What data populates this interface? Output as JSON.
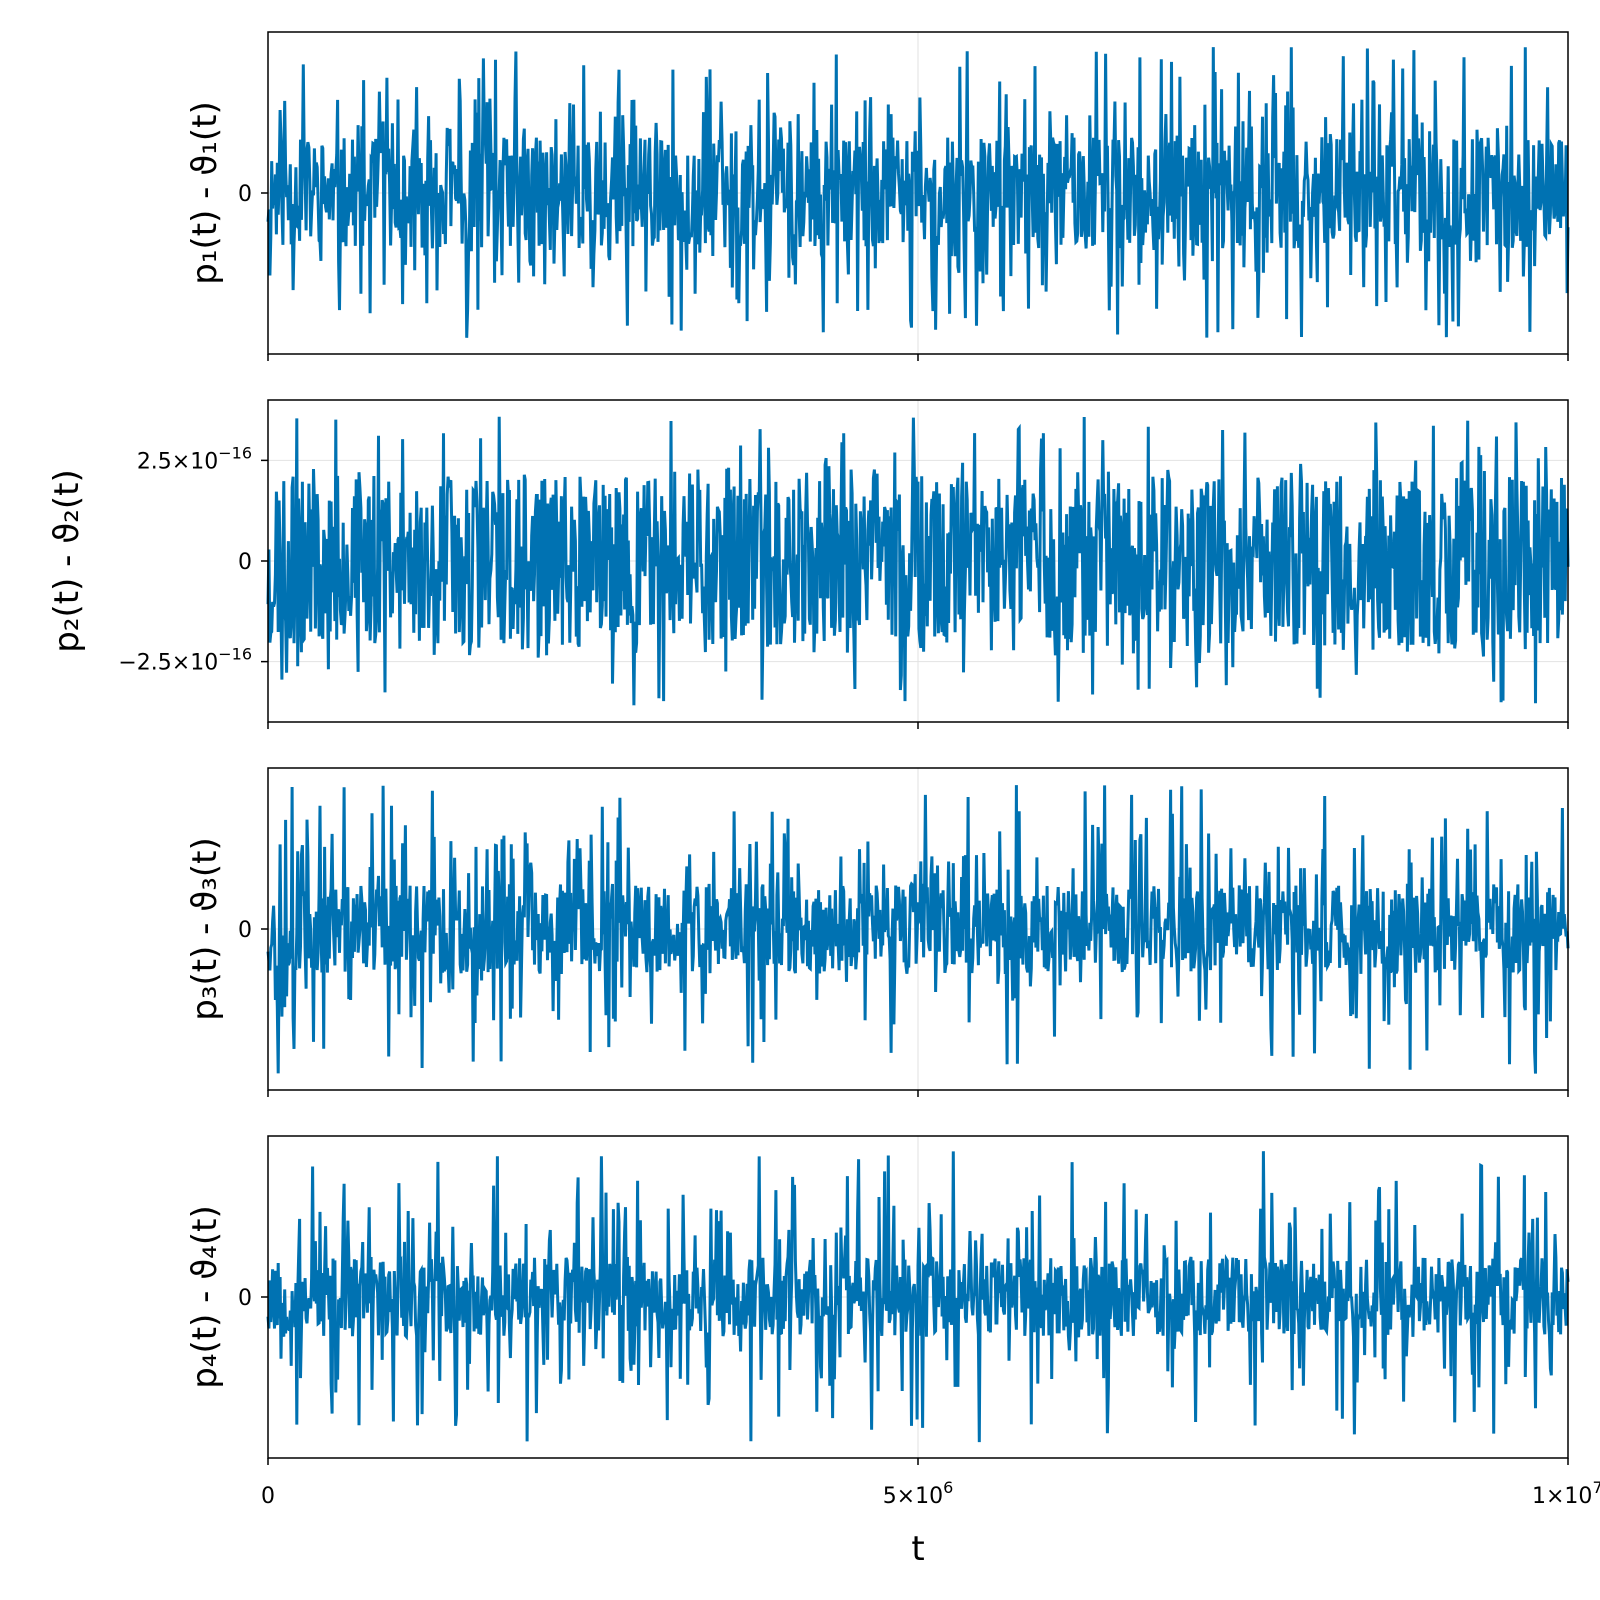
{
  "chart_data": [
    {
      "type": "line",
      "ylabel": "p₁(t) - ϑ₁(t)",
      "xlabel": "",
      "xlim": [
        0,
        10000000
      ],
      "ylim": [
        -1.6,
        1.6
      ],
      "yticks": [
        {
          "value": 0,
          "label": "0"
        }
      ],
      "xticks": [
        {
          "value": 5000000,
          "label": ""
        }
      ],
      "series": [
        {
          "color": "#0072b2",
          "amplitude": 0.55,
          "peak": 1.45,
          "seed": 11
        }
      ]
    },
    {
      "type": "line",
      "ylabel": "p₂(t) - ϑ₂(t)",
      "xlabel": "",
      "xlim": [
        0,
        10000000
      ],
      "ylim": [
        -4e-16,
        4e-16
      ],
      "yticks": [
        {
          "value": 2.5e-16,
          "label": "2.5×10",
          "exp": "−16"
        },
        {
          "value": 0,
          "label": "0"
        },
        {
          "value": -2.5e-16,
          "label": "−2.5×10",
          "exp": "−16"
        }
      ],
      "xticks": [
        {
          "value": 5000000,
          "label": ""
        }
      ],
      "series": [
        {
          "color": "#0072b2",
          "amplitude": 2.1e-16,
          "peak": 3.6e-16,
          "seed": 23
        }
      ]
    },
    {
      "type": "line",
      "ylabel": "p₃(t) - ϑ₃(t)",
      "xlabel": "",
      "xlim": [
        0,
        10000000
      ],
      "ylim": [
        -1.6,
        1.6
      ],
      "yticks": [
        {
          "value": 0,
          "label": "0"
        }
      ],
      "xticks": [
        {
          "value": 5000000,
          "label": ""
        }
      ],
      "series": [
        {
          "color": "#0072b2",
          "amplitude": 0.45,
          "peak": 1.45,
          "seed": 37
        }
      ]
    },
    {
      "type": "line",
      "ylabel": "p₄(t) - ϑ₄(t)",
      "xlabel": "t",
      "xlim": [
        0,
        10000000
      ],
      "ylim": [
        -1.6,
        1.6
      ],
      "yticks": [
        {
          "value": 0,
          "label": "0"
        }
      ],
      "xticks": [
        {
          "value": 0,
          "label": "0"
        },
        {
          "value": 5000000,
          "label": "5×10",
          "exp": "6"
        },
        {
          "value": 10000000,
          "label": "1×10",
          "exp": "7"
        }
      ],
      "series": [
        {
          "color": "#0072b2",
          "amplitude": 0.4,
          "peak": 1.45,
          "seed": 53
        }
      ]
    }
  ]
}
